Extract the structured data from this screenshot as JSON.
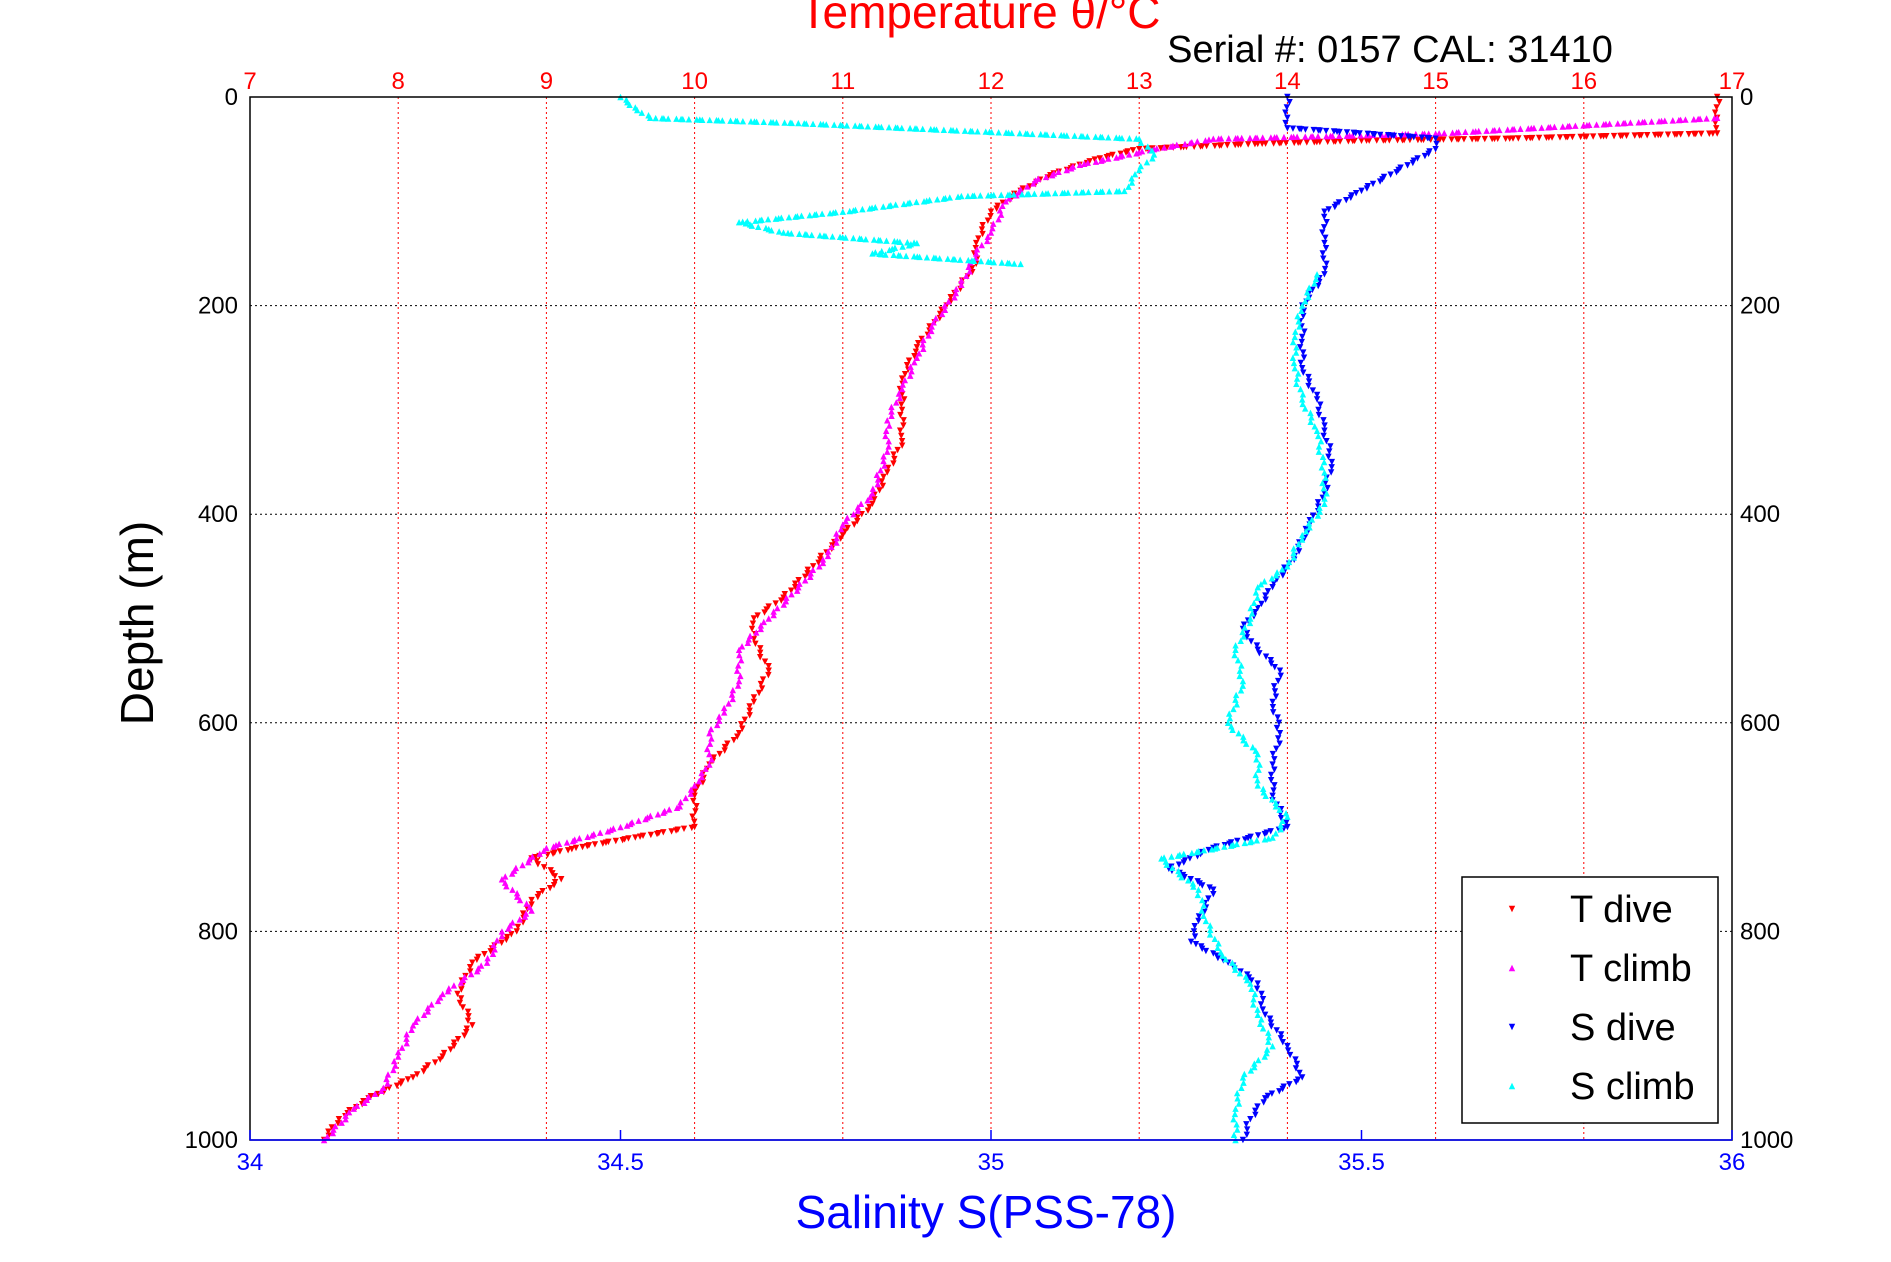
{
  "chart_data": {
    "type": "scatter",
    "title_top": "Temperature θ/°C",
    "serial_text": "Serial #: 0157  CAL: 31410",
    "ylabel": "Depth (m)",
    "xlabel_bottom": "Salinity S(PSS-78)",
    "y_range": [
      0,
      1000
    ],
    "y_reversed": true,
    "y_ticks": [
      "0",
      "200",
      "400",
      "600",
      "800",
      "1000"
    ],
    "temp_range": [
      7,
      17
    ],
    "temp_ticks": [
      "7",
      "8",
      "9",
      "10",
      "11",
      "12",
      "13",
      "14",
      "15",
      "16",
      "17"
    ],
    "sal_range": [
      34,
      36
    ],
    "sal_ticks": [
      "34",
      "34.5",
      "35",
      "35.5",
      "36"
    ],
    "grid": true,
    "colors": {
      "T_dive": "#ff0000",
      "T_climb": "#ff00ff",
      "S_dive": "#0000ff",
      "S_climb": "#00ffff",
      "top_axis": "#ff0000",
      "bottom_axis": "#0000ff"
    },
    "legend": {
      "placement": "bottom-right",
      "entries": [
        "T dive",
        "T climb",
        "S dive",
        "S climb"
      ]
    },
    "series": [
      {
        "name": "T dive",
        "axis": "temperature",
        "marker": "triangle-down",
        "points": [
          [
            16.9,
            0
          ],
          [
            16.9,
            20
          ],
          [
            16.9,
            35
          ],
          [
            15.5,
            40
          ],
          [
            14.5,
            42
          ],
          [
            13.8,
            45
          ],
          [
            13.0,
            50
          ],
          [
            12.7,
            60
          ],
          [
            12.4,
            75
          ],
          [
            12.2,
            90
          ],
          [
            12.0,
            110
          ],
          [
            11.9,
            140
          ],
          [
            11.9,
            160
          ],
          [
            11.8,
            180
          ],
          [
            11.7,
            200
          ],
          [
            11.5,
            240
          ],
          [
            11.4,
            270
          ],
          [
            11.4,
            300
          ],
          [
            11.4,
            330
          ],
          [
            11.3,
            360
          ],
          [
            11.2,
            390
          ],
          [
            11.0,
            420
          ],
          [
            10.8,
            450
          ],
          [
            10.6,
            480
          ],
          [
            10.4,
            500
          ],
          [
            10.4,
            520
          ],
          [
            10.5,
            550
          ],
          [
            10.4,
            580
          ],
          [
            10.3,
            610
          ],
          [
            10.1,
            640
          ],
          [
            10.0,
            670
          ],
          [
            10.0,
            700
          ],
          [
            9.6,
            710
          ],
          [
            9.2,
            720
          ],
          [
            8.9,
            730
          ],
          [
            9.1,
            750
          ],
          [
            8.9,
            770
          ],
          [
            8.8,
            800
          ],
          [
            8.5,
            830
          ],
          [
            8.4,
            860
          ],
          [
            8.5,
            890
          ],
          [
            8.3,
            920
          ],
          [
            8.1,
            940
          ],
          [
            7.8,
            960
          ],
          [
            7.6,
            980
          ],
          [
            7.5,
            1000
          ]
        ]
      },
      {
        "name": "T climb",
        "axis": "temperature",
        "marker": "triangle-up",
        "points": [
          [
            16.9,
            20
          ],
          [
            15.0,
            35
          ],
          [
            13.5,
            40
          ],
          [
            13.1,
            50
          ],
          [
            12.6,
            65
          ],
          [
            12.3,
            80
          ],
          [
            12.1,
            100
          ],
          [
            12.0,
            130
          ],
          [
            11.9,
            150
          ],
          [
            11.8,
            180
          ],
          [
            11.6,
            220
          ],
          [
            11.5,
            250
          ],
          [
            11.4,
            280
          ],
          [
            11.3,
            310
          ],
          [
            11.3,
            340
          ],
          [
            11.2,
            380
          ],
          [
            11.0,
            410
          ],
          [
            10.9,
            440
          ],
          [
            10.7,
            470
          ],
          [
            10.5,
            500
          ],
          [
            10.3,
            530
          ],
          [
            10.3,
            560
          ],
          [
            10.2,
            590
          ],
          [
            10.1,
            610
          ],
          [
            10.1,
            640
          ],
          [
            10.0,
            660
          ],
          [
            9.9,
            680
          ],
          [
            9.5,
            700
          ],
          [
            9.0,
            720
          ],
          [
            8.7,
            750
          ],
          [
            8.9,
            780
          ],
          [
            8.7,
            800
          ],
          [
            8.6,
            830
          ],
          [
            8.3,
            860
          ],
          [
            8.1,
            890
          ],
          [
            8.0,
            920
          ],
          [
            7.9,
            950
          ],
          [
            7.7,
            970
          ],
          [
            7.5,
            1000
          ]
        ]
      },
      {
        "name": "S dive",
        "axis": "salinity",
        "marker": "triangle-down",
        "points": [
          [
            35.4,
            0
          ],
          [
            35.4,
            20
          ],
          [
            35.4,
            30
          ],
          [
            35.6,
            40
          ],
          [
            35.6,
            50
          ],
          [
            35.55,
            70
          ],
          [
            35.5,
            90
          ],
          [
            35.45,
            110
          ],
          [
            35.45,
            140
          ],
          [
            35.45,
            170
          ],
          [
            35.42,
            200
          ],
          [
            35.42,
            230
          ],
          [
            35.42,
            260
          ],
          [
            35.44,
            290
          ],
          [
            35.45,
            320
          ],
          [
            35.46,
            350
          ],
          [
            35.45,
            380
          ],
          [
            35.43,
            410
          ],
          [
            35.41,
            440
          ],
          [
            35.38,
            470
          ],
          [
            35.36,
            490
          ],
          [
            35.34,
            510
          ],
          [
            35.36,
            530
          ],
          [
            35.39,
            550
          ],
          [
            35.38,
            580
          ],
          [
            35.39,
            610
          ],
          [
            35.38,
            640
          ],
          [
            35.38,
            670
          ],
          [
            35.4,
            700
          ],
          [
            35.3,
            720
          ],
          [
            35.24,
            740
          ],
          [
            35.3,
            760
          ],
          [
            35.28,
            790
          ],
          [
            35.27,
            810
          ],
          [
            35.32,
            830
          ],
          [
            35.36,
            850
          ],
          [
            35.37,
            880
          ],
          [
            35.4,
            910
          ],
          [
            35.42,
            940
          ],
          [
            35.37,
            960
          ],
          [
            35.35,
            980
          ],
          [
            35.34,
            1000
          ]
        ]
      },
      {
        "name": "S climb",
        "axis": "salinity",
        "marker": "triangle-up",
        "points": [
          [
            9.5,
            0
          ],
          [
            9.6,
            10
          ],
          [
            9.7,
            20
          ],
          [
            10.7,
            25
          ],
          [
            13.0,
            40
          ],
          [
            13.1,
            55
          ],
          [
            13.0,
            70
          ],
          [
            12.9,
            90
          ],
          [
            11.8,
            95
          ],
          [
            11.0,
            110
          ],
          [
            10.3,
            120
          ],
          [
            10.6,
            130
          ],
          [
            11.5,
            140
          ],
          [
            11.2,
            150
          ],
          [
            12.2,
            160
          ],
          [
            35.44,
            170
          ],
          [
            35.42,
            200
          ],
          [
            35.41,
            230
          ],
          [
            35.41,
            260
          ],
          [
            35.42,
            290
          ],
          [
            35.44,
            320
          ],
          [
            35.45,
            360
          ],
          [
            35.45,
            390
          ],
          [
            35.42,
            420
          ],
          [
            35.4,
            450
          ],
          [
            35.36,
            470
          ],
          [
            35.35,
            500
          ],
          [
            35.33,
            530
          ],
          [
            35.34,
            560
          ],
          [
            35.32,
            600
          ],
          [
            35.36,
            630
          ],
          [
            35.36,
            660
          ],
          [
            35.4,
            690
          ],
          [
            35.38,
            710
          ],
          [
            35.23,
            730
          ],
          [
            35.28,
            760
          ],
          [
            35.29,
            790
          ],
          [
            35.31,
            820
          ],
          [
            35.35,
            850
          ],
          [
            35.36,
            880
          ],
          [
            35.38,
            910
          ],
          [
            35.34,
            940
          ],
          [
            35.33,
            970
          ],
          [
            35.33,
            1000
          ]
        ]
      }
    ]
  }
}
